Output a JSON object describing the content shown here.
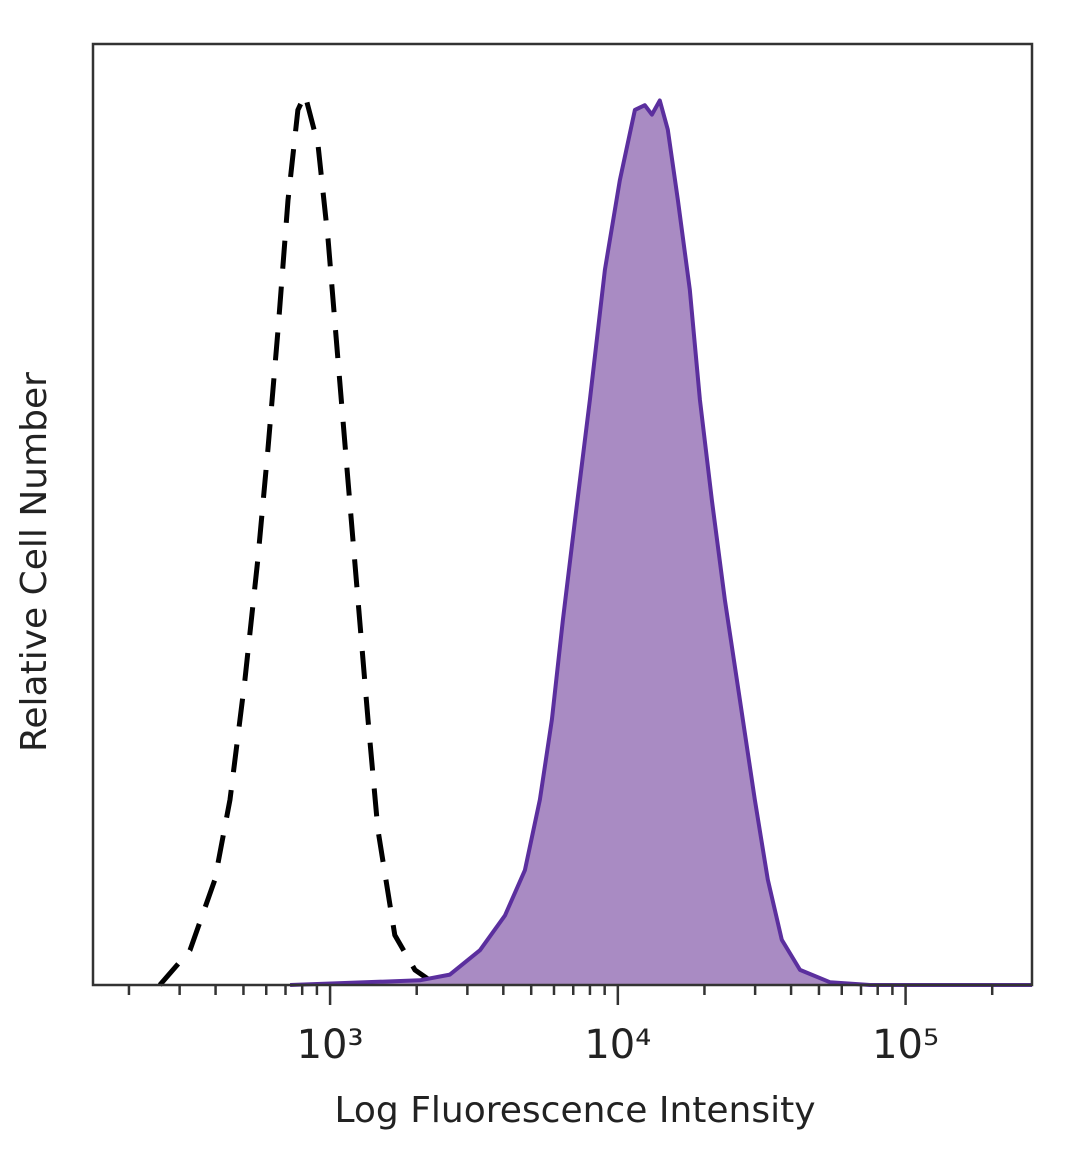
{
  "chart_data": {
    "type": "histogram-overlay",
    "xlabel": "Log Fluorescence Intensity",
    "ylabel": "Relative Cell Number",
    "xscale": "log",
    "xlim": [
      150,
      275000
    ],
    "ylim": [
      0,
      100
    ],
    "xticks": [
      {
        "value": 1000,
        "label": "10³"
      },
      {
        "value": 10000,
        "label": "10⁴"
      },
      {
        "value": 100000,
        "label": "10⁵"
      }
    ],
    "xminor_ticks": [
      200,
      300,
      400,
      500,
      600,
      700,
      800,
      900,
      2000,
      3000,
      4000,
      5000,
      6000,
      7000,
      8000,
      9000,
      20000,
      30000,
      40000,
      50000,
      60000,
      70000,
      80000,
      90000,
      200000
    ],
    "series": [
      {
        "color": "#000000",
        "dashed": true,
        "filled": false,
        "x": [
          256,
          326,
          398,
          449,
          506,
          561,
          608,
          659,
          714,
          773,
          818,
          908,
          984,
          1065,
          1153,
          1250,
          1355,
          1466,
          1679,
          1972,
          2223,
          2608
        ],
        "values": [
          0,
          3.7,
          11.2,
          19.7,
          32.4,
          45.2,
          56.9,
          69.6,
          83.4,
          93.0,
          94.6,
          89.3,
          79.2,
          66.4,
          53.7,
          40.9,
          28.2,
          16.5,
          5.3,
          1.6,
          0.5,
          0
        ]
      },
      {
        "color": "#5b2f9e",
        "dashed": false,
        "filled": true,
        "fill": "#a98bc3",
        "x": [
          726,
          2051,
          2608,
          3319,
          4055,
          4753,
          5358,
          5902,
          6442,
          7096,
          8000,
          9016,
          10160,
          11460,
          12410,
          13130,
          13990,
          14920,
          16170,
          17790,
          19280,
          21230,
          23550,
          26550,
          29930,
          33210,
          37150,
          42950,
          54580,
          75160,
          275000
        ],
        "values": [
          0,
          0.5,
          1.1,
          3.7,
          7.4,
          12.2,
          19.7,
          28.2,
          38.8,
          49.4,
          62.2,
          76.0,
          85.5,
          93.0,
          93.5,
          92.5,
          94.0,
          90.9,
          83.4,
          73.9,
          62.2,
          51.5,
          40.9,
          30.3,
          19.7,
          11.2,
          4.8,
          1.6,
          0.3,
          0,
          0
        ]
      }
    ]
  }
}
